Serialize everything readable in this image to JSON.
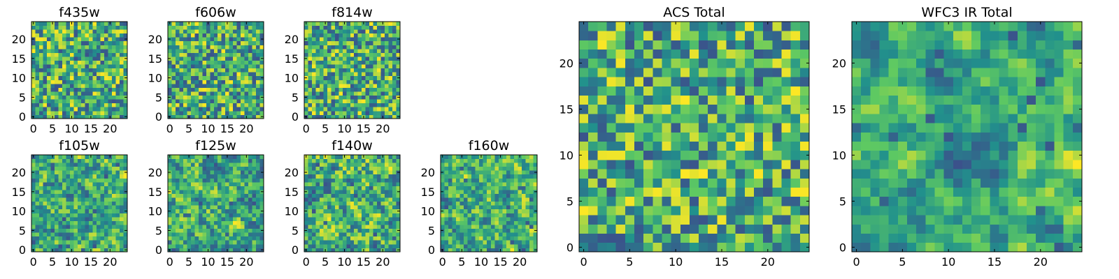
{
  "figure": {
    "colormap": "viridis",
    "colormap_stops": [
      "#440154",
      "#3b528b",
      "#21918c",
      "#5ec962",
      "#fde725"
    ],
    "frame_color": "#000000",
    "background": "#ffffff"
  },
  "chart_data": [
    {
      "type": "heatmap",
      "title": "f435w",
      "grid_size": 25,
      "xlim": [
        0,
        24
      ],
      "ylim": [
        0,
        24
      ],
      "xticks": [
        "0",
        "5",
        "10",
        "15",
        "20"
      ],
      "yticks": [
        "0",
        "5",
        "10",
        "15",
        "20"
      ],
      "value_range": [
        0,
        1
      ],
      "spatial_smoothness": 0,
      "seed": 11
    },
    {
      "type": "heatmap",
      "title": "f606w",
      "grid_size": 25,
      "xlim": [
        0,
        24
      ],
      "ylim": [
        0,
        24
      ],
      "xticks": [
        "0",
        "5",
        "10",
        "15",
        "20"
      ],
      "yticks": [
        "0",
        "5",
        "10",
        "15",
        "20"
      ],
      "value_range": [
        0,
        1
      ],
      "spatial_smoothness": 0,
      "seed": 23
    },
    {
      "type": "heatmap",
      "title": "f814w",
      "grid_size": 25,
      "xlim": [
        0,
        24
      ],
      "ylim": [
        0,
        24
      ],
      "xticks": [
        "0",
        "5",
        "10",
        "15",
        "20"
      ],
      "yticks": [
        "0",
        "5",
        "10",
        "15",
        "20"
      ],
      "value_range": [
        0,
        1
      ],
      "spatial_smoothness": 0,
      "seed": 37
    },
    {
      "type": "heatmap",
      "title": "f105w",
      "grid_size": 25,
      "xlim": [
        0,
        24
      ],
      "ylim": [
        0,
        24
      ],
      "xticks": [
        "0",
        "5",
        "10",
        "15",
        "20"
      ],
      "yticks": [
        "0",
        "5",
        "10",
        "15",
        "20"
      ],
      "value_range": [
        0,
        1
      ],
      "spatial_smoothness": 1,
      "seed": 41
    },
    {
      "type": "heatmap",
      "title": "f125w",
      "grid_size": 25,
      "xlim": [
        0,
        24
      ],
      "ylim": [
        0,
        24
      ],
      "xticks": [
        "0",
        "5",
        "10",
        "15",
        "20"
      ],
      "yticks": [
        "0",
        "5",
        "10",
        "15",
        "20"
      ],
      "value_range": [
        0,
        1
      ],
      "spatial_smoothness": 1,
      "seed": 53
    },
    {
      "type": "heatmap",
      "title": "f140w",
      "grid_size": 25,
      "xlim": [
        0,
        24
      ],
      "ylim": [
        0,
        24
      ],
      "xticks": [
        "0",
        "5",
        "10",
        "15",
        "20"
      ],
      "yticks": [
        "0",
        "5",
        "10",
        "15",
        "20"
      ],
      "value_range": [
        0,
        1
      ],
      "spatial_smoothness": 1,
      "seed": 67
    },
    {
      "type": "heatmap",
      "title": "f160w",
      "grid_size": 25,
      "xlim": [
        0,
        24
      ],
      "ylim": [
        0,
        24
      ],
      "xticks": [
        "0",
        "5",
        "10",
        "15",
        "20"
      ],
      "yticks": [
        "0",
        "5",
        "10",
        "15",
        "20"
      ],
      "value_range": [
        0,
        1
      ],
      "spatial_smoothness": 1,
      "seed": 79
    },
    {
      "type": "heatmap",
      "title": "ACS Total",
      "grid_size": 25,
      "xlim": [
        0,
        24
      ],
      "ylim": [
        0,
        24
      ],
      "xticks": [
        "0",
        "5",
        "10",
        "15",
        "20"
      ],
      "yticks": [
        "0",
        "5",
        "10",
        "15",
        "20"
      ],
      "value_range": [
        0,
        1
      ],
      "spatial_smoothness": 0,
      "seed": 97
    },
    {
      "type": "heatmap",
      "title": "WFC3 IR Total",
      "grid_size": 25,
      "xlim": [
        0,
        24
      ],
      "ylim": [
        0,
        24
      ],
      "xticks": [
        "0",
        "5",
        "10",
        "15",
        "20"
      ],
      "yticks": [
        "0",
        "5",
        "10",
        "15",
        "20"
      ],
      "value_range": [
        0,
        1
      ],
      "spatial_smoothness": 2,
      "seed": 109
    }
  ]
}
